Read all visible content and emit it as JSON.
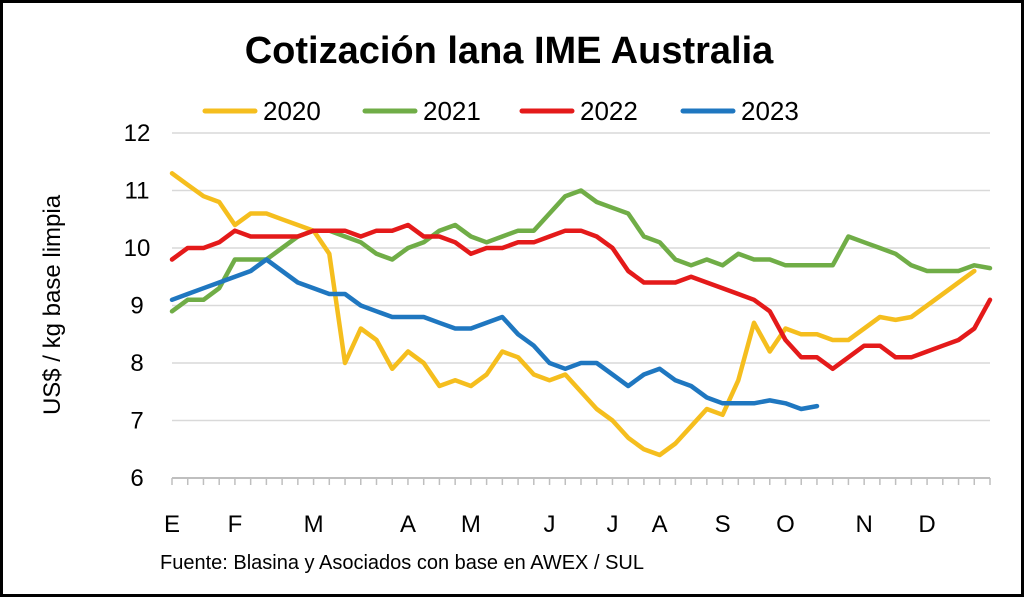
{
  "chart_data": {
    "type": "line",
    "title": "Cotización lana IME Australia",
    "ylabel": "US$ / kg base limpia",
    "source": "Fuente: Blasina y Asociados con base en AWEX / SUL",
    "ylim": [
      6,
      12
    ],
    "yticks": [
      6,
      7,
      8,
      9,
      10,
      11,
      12
    ],
    "xlim": [
      1,
      53
    ],
    "month_labels": [
      {
        "label": "E",
        "week": 1
      },
      {
        "label": "F",
        "week": 5
      },
      {
        "label": "M",
        "week": 10
      },
      {
        "label": "A",
        "week": 16
      },
      {
        "label": "M",
        "week": 20
      },
      {
        "label": "J",
        "week": 25
      },
      {
        "label": "J",
        "week": 29
      },
      {
        "label": "A",
        "week": 32
      },
      {
        "label": "S",
        "week": 36
      },
      {
        "label": "O",
        "week": 40
      },
      {
        "label": "N",
        "week": 45
      },
      {
        "label": "D",
        "week": 49
      }
    ],
    "legend_position": "top",
    "grid": true,
    "series": [
      {
        "name": "2020",
        "color": "#F5BE1E",
        "x": [
          1,
          2,
          3,
          4,
          5,
          6,
          7,
          8,
          9,
          10,
          11,
          12,
          13,
          14,
          15,
          16,
          17,
          18,
          19,
          20,
          21,
          22,
          23,
          24,
          25,
          26,
          27,
          28,
          29,
          30,
          31,
          32,
          33,
          34,
          35,
          36,
          37,
          38,
          39,
          40,
          41,
          42,
          43,
          44,
          45,
          46,
          47,
          48,
          49,
          50,
          51,
          52
        ],
        "values": [
          11.3,
          11.1,
          10.9,
          10.8,
          10.4,
          10.6,
          10.6,
          10.5,
          10.4,
          10.3,
          9.9,
          8.0,
          8.6,
          8.4,
          7.9,
          8.2,
          8.0,
          7.6,
          7.7,
          7.6,
          7.8,
          8.2,
          8.1,
          7.8,
          7.7,
          7.8,
          7.5,
          7.2,
          7.0,
          6.7,
          6.5,
          6.4,
          6.6,
          6.9,
          7.2,
          7.1,
          7.7,
          8.7,
          8.2,
          8.6,
          8.5,
          8.5,
          8.4,
          8.4,
          8.6,
          8.8,
          8.75,
          8.8,
          9.0,
          9.2,
          9.4,
          9.6
        ]
      },
      {
        "name": "2021",
        "color": "#70AD47",
        "x": [
          1,
          2,
          3,
          4,
          5,
          6,
          7,
          8,
          9,
          10,
          11,
          12,
          13,
          14,
          15,
          16,
          17,
          18,
          19,
          20,
          21,
          22,
          23,
          24,
          25,
          26,
          27,
          28,
          29,
          30,
          31,
          32,
          33,
          34,
          35,
          36,
          37,
          38,
          39,
          40,
          41,
          42,
          43,
          44,
          45,
          46,
          47,
          48,
          49,
          50,
          51,
          52,
          53
        ],
        "values": [
          8.9,
          9.1,
          9.1,
          9.3,
          9.8,
          9.8,
          9.8,
          10.0,
          10.2,
          10.3,
          10.3,
          10.2,
          10.1,
          9.9,
          9.8,
          10.0,
          10.1,
          10.3,
          10.4,
          10.2,
          10.1,
          10.2,
          10.3,
          10.3,
          10.6,
          10.9,
          11.0,
          10.8,
          10.7,
          10.6,
          10.2,
          10.1,
          9.8,
          9.7,
          9.8,
          9.7,
          9.9,
          9.8,
          9.8,
          9.7,
          9.7,
          9.7,
          9.7,
          10.2,
          10.1,
          10.0,
          9.9,
          9.7,
          9.6,
          9.6,
          9.6,
          9.7,
          9.65
        ]
      },
      {
        "name": "2022",
        "color": "#E41A1A",
        "x": [
          1,
          2,
          3,
          4,
          5,
          6,
          7,
          8,
          9,
          10,
          11,
          12,
          13,
          14,
          15,
          16,
          17,
          18,
          19,
          20,
          21,
          22,
          23,
          24,
          25,
          26,
          27,
          28,
          29,
          30,
          31,
          32,
          33,
          34,
          35,
          36,
          37,
          38,
          39,
          40,
          41,
          42,
          43,
          44,
          45,
          46,
          47,
          48,
          49,
          50,
          51,
          52,
          53
        ],
        "values": [
          9.8,
          10.0,
          10.0,
          10.1,
          10.3,
          10.2,
          10.2,
          10.2,
          10.2,
          10.3,
          10.3,
          10.3,
          10.2,
          10.3,
          10.3,
          10.4,
          10.2,
          10.2,
          10.1,
          9.9,
          10.0,
          10.0,
          10.1,
          10.1,
          10.2,
          10.3,
          10.3,
          10.2,
          10.0,
          9.6,
          9.4,
          9.4,
          9.4,
          9.5,
          9.4,
          9.3,
          9.2,
          9.1,
          8.9,
          8.4,
          8.1,
          8.1,
          7.9,
          8.1,
          8.3,
          8.3,
          8.1,
          8.1,
          8.2,
          8.3,
          8.4,
          8.6,
          9.1
        ]
      },
      {
        "name": "2023",
        "color": "#1F77C0",
        "x": [
          1,
          2,
          3,
          4,
          5,
          6,
          7,
          8,
          9,
          10,
          11,
          12,
          13,
          14,
          15,
          16,
          17,
          18,
          19,
          20,
          21,
          22,
          23,
          24,
          25,
          26,
          27,
          28,
          29,
          30,
          31,
          32,
          33,
          34,
          35,
          36,
          37,
          38,
          39,
          40,
          41,
          42
        ],
        "values": [
          9.1,
          9.2,
          9.3,
          9.4,
          9.5,
          9.6,
          9.8,
          9.6,
          9.4,
          9.3,
          9.2,
          9.2,
          9.0,
          8.9,
          8.8,
          8.8,
          8.8,
          8.7,
          8.6,
          8.6,
          8.7,
          8.8,
          8.5,
          8.3,
          8.0,
          7.9,
          8.0,
          8.0,
          7.8,
          7.6,
          7.8,
          7.9,
          7.7,
          7.6,
          7.4,
          7.3,
          7.3,
          7.3,
          7.35,
          7.3,
          7.2,
          7.25
        ]
      }
    ]
  }
}
